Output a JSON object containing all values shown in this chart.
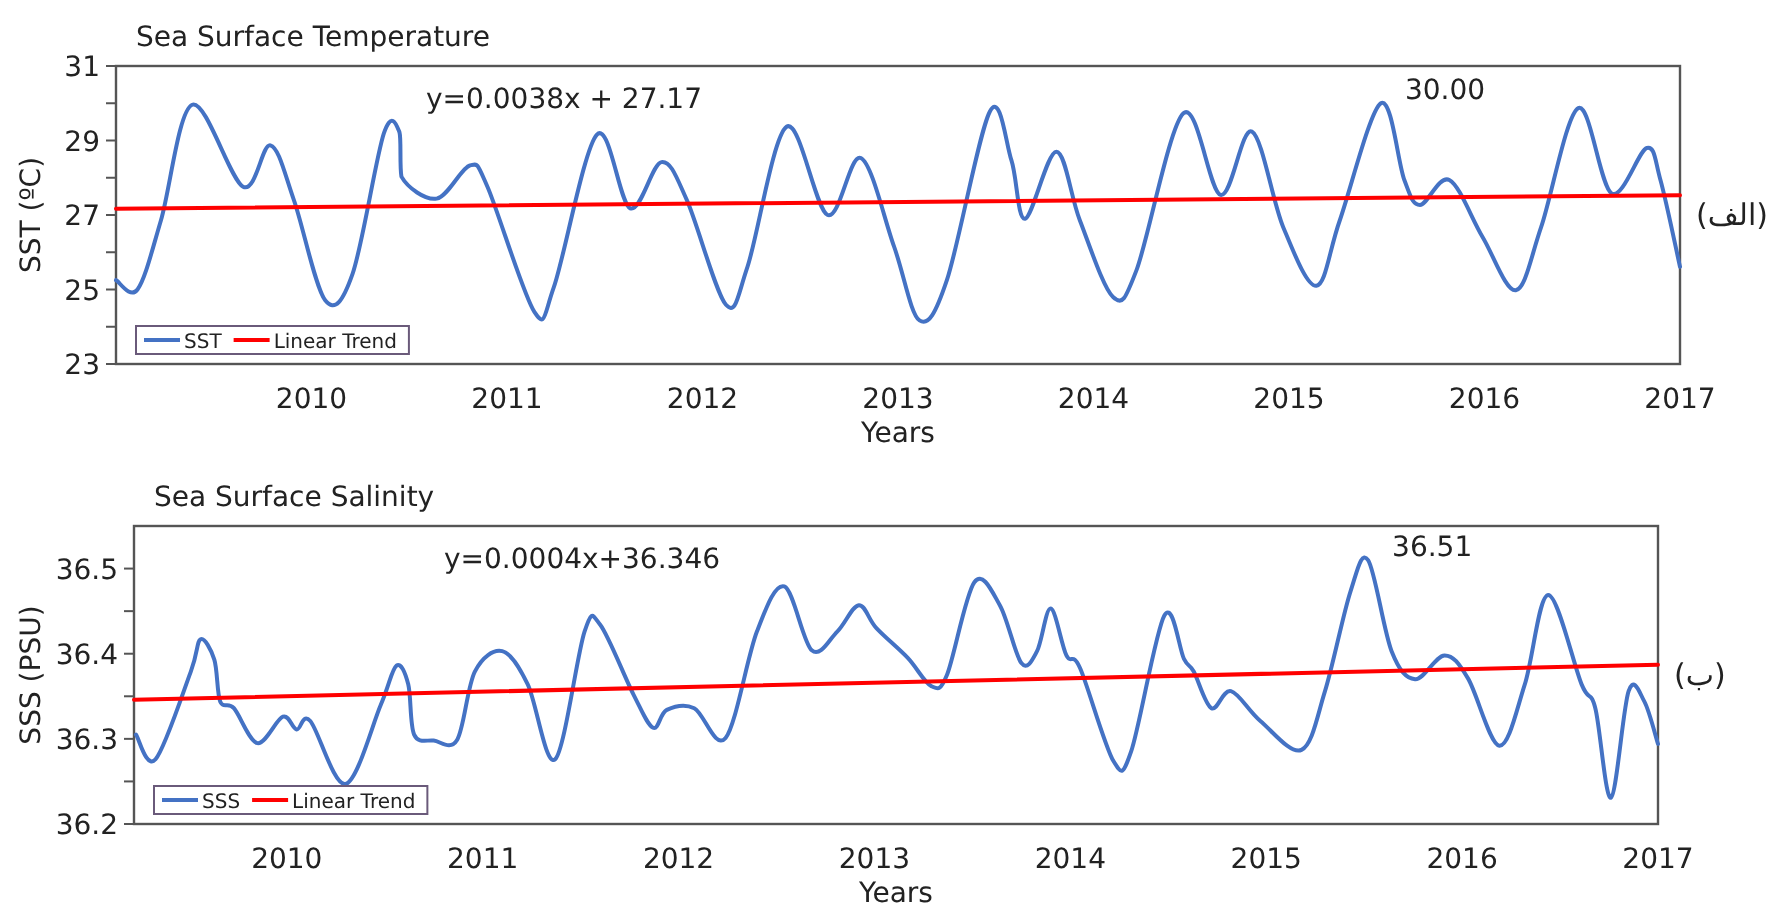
{
  "chart_data": [
    {
      "type": "line",
      "title": "Sea Surface Temperature",
      "xlabel": "Years",
      "ylabel": "SST (ºC)",
      "xlim": [
        2009,
        2017
      ],
      "ylim": [
        23,
        31
      ],
      "xticks": [
        2010,
        2011,
        2012,
        2013,
        2014,
        2015,
        2016,
        2017
      ],
      "yticks": [
        23,
        {
          "value": 24,
          "label": null
        },
        25,
        {
          "value": 26,
          "label": null
        },
        27,
        {
          "value": 28,
          "label": null
        },
        29,
        {
          "value": 30,
          "label": null
        },
        31
      ],
      "legend": "bottom left",
      "grid": false,
      "marker": "none",
      "line_style": "solid",
      "annotations": [
        "y=0.0038x + 27.17",
        {
          "text": "30.00",
          "x": 2015.47,
          "y": 30.0
        },
        "(الف)"
      ],
      "series": [
        {
          "name": "SST",
          "color": "#4472c4",
          "x": [
            2009.0,
            2009.11,
            2009.23,
            2009.39,
            2009.65,
            2009.79,
            2009.91,
            2010.07,
            2010.21,
            2010.37,
            2010.45,
            2010.46,
            2010.64,
            2010.81,
            2010.9,
            2011.14,
            2011.24,
            2011.46,
            2011.63,
            2011.79,
            2011.92,
            2012.12,
            2012.23,
            2012.43,
            2012.64,
            2012.81,
            2012.98,
            2013.11,
            2013.25,
            2013.47,
            2013.58,
            2013.65,
            2013.81,
            2013.93,
            2014.1,
            2014.22,
            2014.46,
            2014.65,
            2014.81,
            2014.97,
            2015.14,
            2015.26,
            2015.47,
            2015.59,
            2015.67,
            2015.82,
            2015.99,
            2016.16,
            2016.29,
            2016.48,
            2016.65,
            2016.83,
            2016.9,
            2017.0
          ],
          "values": [
            25.25,
            25.0,
            26.86,
            29.96,
            27.76,
            28.87,
            27.4,
            24.71,
            25.42,
            29.19,
            29.22,
            28.03,
            27.44,
            28.33,
            27.76,
            24.4,
            25.07,
            29.16,
            27.18,
            28.42,
            27.4,
            24.59,
            25.61,
            29.37,
            27.0,
            28.53,
            26.15,
            24.17,
            25.25,
            29.78,
            28.47,
            26.9,
            28.7,
            26.86,
            24.8,
            25.52,
            29.73,
            27.54,
            29.24,
            26.68,
            25.1,
            26.86,
            30.0,
            27.94,
            27.27,
            27.94,
            26.41,
            24.98,
            26.68,
            29.87,
            27.58,
            28.8,
            27.94,
            25.61
          ]
        },
        {
          "name": "Linear Trend",
          "color": "#ff0000",
          "x": [
            2009,
            2017
          ],
          "values": [
            27.17,
            27.53
          ]
        }
      ]
    },
    {
      "type": "line",
      "title": "Sea Surface Salinity",
      "xlabel": "Years",
      "ylabel": "SSS (PSU)",
      "xlim": [
        2009.22,
        2017
      ],
      "ylim": [
        36.2,
        36.55
      ],
      "xticks": [
        2010,
        2011,
        2012,
        2013,
        2014,
        2015,
        2016,
        2017
      ],
      "yticks": [
        36.2,
        {
          "value": 36.25,
          "label": null
        },
        36.3,
        {
          "value": 36.35,
          "label": null
        },
        36.4,
        {
          "value": 36.45,
          "label": null
        },
        36.5
      ],
      "legend": "bottom left",
      "grid": false,
      "marker": "none",
      "line_style": "solid",
      "annotations": [
        "y=0.0004x+36.346",
        {
          "text": "36.51",
          "x": 2015.52,
          "y": 36.51
        },
        "(ب)"
      ],
      "series": [
        {
          "name": "SSS",
          "color": "#4472c4",
          "x": [
            2009.23,
            2009.33,
            2009.51,
            2009.56,
            2009.63,
            2009.66,
            2009.73,
            2009.85,
            2009.98,
            2010.05,
            2010.12,
            2010.3,
            2010.48,
            2010.56,
            2010.62,
            2010.65,
            2010.75,
            2010.87,
            2010.96,
            2011.1,
            2011.23,
            2011.37,
            2011.52,
            2011.6,
            2011.77,
            2011.87,
            2011.94,
            2012.08,
            2012.24,
            2012.4,
            2012.54,
            2012.68,
            2012.81,
            2012.92,
            2013.01,
            2013.17,
            2013.29,
            2013.37,
            2013.51,
            2013.64,
            2013.75,
            2013.83,
            2013.9,
            2013.98,
            2014.05,
            2014.22,
            2014.31,
            2014.48,
            2014.58,
            2014.63,
            2014.72,
            2014.82,
            2014.97,
            2015.18,
            2015.3,
            2015.43,
            2015.52,
            2015.64,
            2015.76,
            2015.91,
            2016.03,
            2016.19,
            2016.32,
            2016.44,
            2016.61,
            2016.68,
            2016.76,
            2016.85,
            2016.93,
            2017.0
          ],
          "values": [
            36.305,
            36.276,
            36.379,
            36.417,
            36.393,
            36.344,
            36.336,
            36.295,
            36.326,
            36.311,
            36.321,
            36.247,
            36.34,
            36.386,
            36.364,
            36.305,
            36.298,
            36.299,
            36.379,
            36.403,
            36.364,
            36.276,
            36.426,
            36.434,
            36.352,
            36.313,
            36.334,
            36.336,
            36.301,
            36.426,
            36.479,
            36.404,
            36.426,
            36.457,
            36.43,
            36.395,
            36.362,
            36.375,
            36.484,
            36.457,
            36.389,
            36.403,
            36.453,
            36.398,
            36.383,
            36.274,
            36.285,
            36.445,
            36.394,
            36.379,
            36.336,
            36.356,
            36.321,
            36.287,
            36.356,
            36.473,
            36.51,
            36.403,
            36.37,
            36.398,
            36.371,
            36.292,
            36.364,
            36.469,
            36.364,
            36.336,
            36.231,
            36.356,
            36.344,
            36.294
          ]
        },
        {
          "name": "Linear Trend",
          "color": "#ff0000",
          "x": [
            2009.22,
            2017
          ],
          "values": [
            36.346,
            36.387
          ]
        }
      ]
    }
  ]
}
